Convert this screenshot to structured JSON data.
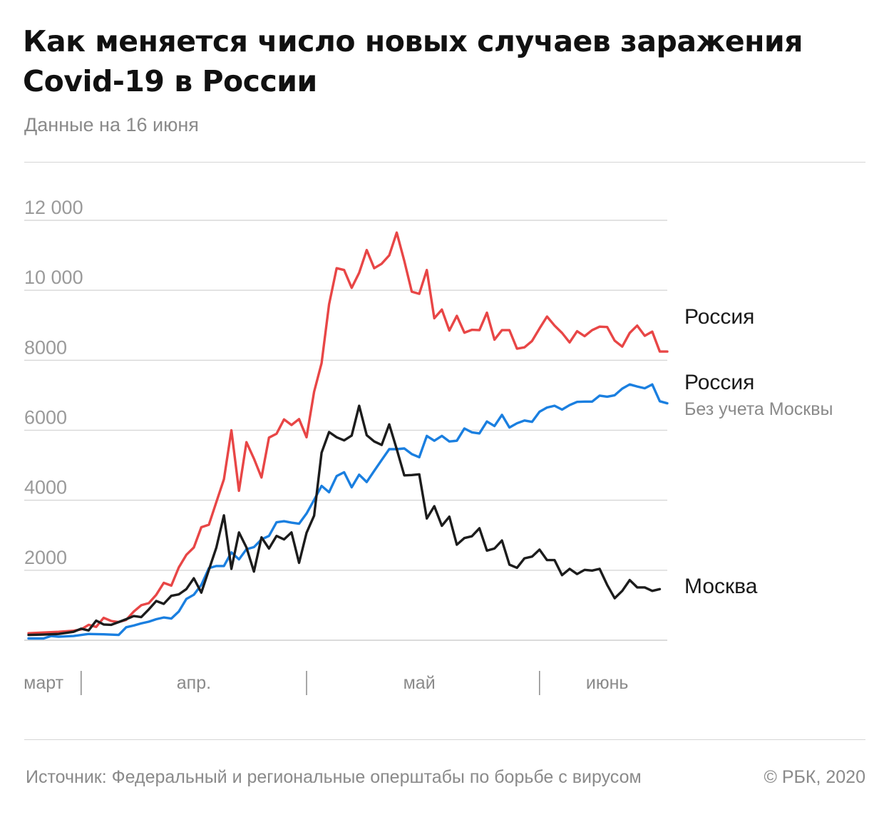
{
  "header": {
    "title": "Как меняется число новых случаев заражения Covid-19 в России",
    "subtitle": "Данные на 16 июня"
  },
  "footer": {
    "source": "Источник: Федеральный и региональные оперштабы по борьбе с вирусом",
    "copyright": "© РБК, 2020"
  },
  "colors": {
    "russia": "#e84646",
    "russia_excl_moscow": "#1a7fe0",
    "moscow": "#1c1c1c"
  },
  "chart_data": {
    "type": "line",
    "title": "Как меняется число новых случаев заражения Covid-19 в России",
    "subtitle": "Данные на 16 июня",
    "xlabel": "",
    "ylabel": "",
    "ylim": [
      0,
      12000
    ],
    "yticks": [
      {
        "value": 2000,
        "label": "2000"
      },
      {
        "value": 4000,
        "label": "4000"
      },
      {
        "value": 6000,
        "label": "6000"
      },
      {
        "value": 8000,
        "label": "8000"
      },
      {
        "value": 10000,
        "label": "10 000"
      },
      {
        "value": 12000,
        "label": "12 000"
      }
    ],
    "x_start": "2020-03-25",
    "x_end": "2020-06-16",
    "months": [
      {
        "label": "март",
        "date": "2020-03-27"
      },
      {
        "label": "апр.",
        "date": "2020-04-16"
      },
      {
        "label": "май",
        "date": "2020-05-16"
      },
      {
        "label": "июнь",
        "date": "2020-06-10"
      }
    ],
    "month_separators": [
      "2020-04-01",
      "2020-05-01",
      "2020-06-01"
    ],
    "grid": true,
    "legend": "right",
    "series": [
      {
        "key": "russia",
        "name": "Россия",
        "values": [
          [
            0,
            200
          ],
          [
            2,
            220
          ],
          [
            4,
            240
          ],
          [
            6,
            270
          ],
          [
            7,
            310
          ],
          [
            8,
            440
          ],
          [
            9,
            380
          ],
          [
            10,
            640
          ],
          [
            11,
            550
          ],
          [
            12,
            520
          ],
          [
            13,
            580
          ],
          [
            14,
            820
          ],
          [
            15,
            1000
          ],
          [
            16,
            1060
          ],
          [
            17,
            1300
          ],
          [
            18,
            1640
          ],
          [
            19,
            1560
          ],
          [
            20,
            2080
          ],
          [
            21,
            2440
          ],
          [
            22,
            2650
          ],
          [
            23,
            3230
          ],
          [
            24,
            3300
          ],
          [
            25,
            3950
          ],
          [
            26,
            4600
          ],
          [
            27,
            6000
          ],
          [
            28,
            4270
          ],
          [
            29,
            5660
          ],
          [
            30,
            5190
          ],
          [
            31,
            4650
          ],
          [
            32,
            5790
          ],
          [
            33,
            5900
          ],
          [
            34,
            6310
          ],
          [
            35,
            6150
          ],
          [
            36,
            6320
          ],
          [
            37,
            5800
          ],
          [
            38,
            7100
          ],
          [
            39,
            7920
          ],
          [
            40,
            9600
          ],
          [
            41,
            10630
          ],
          [
            42,
            10580
          ],
          [
            43,
            10070
          ],
          [
            44,
            10500
          ],
          [
            45,
            11150
          ],
          [
            46,
            10630
          ],
          [
            47,
            10760
          ],
          [
            48,
            11000
          ],
          [
            49,
            11650
          ],
          [
            50,
            10840
          ],
          [
            51,
            9960
          ],
          [
            52,
            9900
          ],
          [
            53,
            10580
          ],
          [
            54,
            9200
          ],
          [
            55,
            9450
          ],
          [
            56,
            8850
          ],
          [
            57,
            9270
          ],
          [
            58,
            8790
          ],
          [
            59,
            8870
          ],
          [
            60,
            8860
          ],
          [
            61,
            9360
          ],
          [
            62,
            8590
          ],
          [
            63,
            8860
          ],
          [
            64,
            8860
          ],
          [
            65,
            8330
          ],
          [
            66,
            8370
          ],
          [
            67,
            8550
          ],
          [
            68,
            8910
          ],
          [
            69,
            9250
          ],
          [
            70,
            8990
          ],
          [
            71,
            8780
          ],
          [
            72,
            8510
          ],
          [
            73,
            8830
          ],
          [
            74,
            8690
          ],
          [
            75,
            8860
          ],
          [
            76,
            8960
          ],
          [
            77,
            8950
          ],
          [
            78,
            8560
          ],
          [
            79,
            8390
          ],
          [
            80,
            8780
          ],
          [
            81,
            8990
          ],
          [
            82,
            8700
          ],
          [
            83,
            8820
          ],
          [
            84,
            8250
          ],
          [
            85,
            8250
          ]
        ]
      },
      {
        "key": "russia_excl_moscow",
        "name": "Россия",
        "subtitle": "Без учета Москвы",
        "values": [
          [
            0,
            50
          ],
          [
            2,
            50
          ],
          [
            3,
            120
          ],
          [
            4,
            100
          ],
          [
            6,
            120
          ],
          [
            8,
            180
          ],
          [
            10,
            170
          ],
          [
            12,
            150
          ],
          [
            13,
            370
          ],
          [
            14,
            420
          ],
          [
            15,
            480
          ],
          [
            16,
            530
          ],
          [
            17,
            600
          ],
          [
            18,
            650
          ],
          [
            19,
            620
          ],
          [
            20,
            820
          ],
          [
            21,
            1180
          ],
          [
            22,
            1300
          ],
          [
            23,
            1580
          ],
          [
            24,
            2060
          ],
          [
            25,
            2120
          ],
          [
            26,
            2120
          ],
          [
            27,
            2510
          ],
          [
            28,
            2310
          ],
          [
            29,
            2600
          ],
          [
            30,
            2660
          ],
          [
            31,
            2880
          ],
          [
            32,
            2980
          ],
          [
            33,
            3370
          ],
          [
            34,
            3400
          ],
          [
            35,
            3360
          ],
          [
            36,
            3330
          ],
          [
            37,
            3620
          ],
          [
            38,
            4010
          ],
          [
            39,
            4410
          ],
          [
            40,
            4230
          ],
          [
            41,
            4690
          ],
          [
            42,
            4800
          ],
          [
            43,
            4370
          ],
          [
            44,
            4730
          ],
          [
            45,
            4520
          ],
          [
            46,
            4840
          ],
          [
            47,
            5150
          ],
          [
            48,
            5460
          ],
          [
            49,
            5460
          ],
          [
            50,
            5480
          ],
          [
            51,
            5320
          ],
          [
            52,
            5230
          ],
          [
            53,
            5840
          ],
          [
            54,
            5700
          ],
          [
            55,
            5840
          ],
          [
            56,
            5680
          ],
          [
            57,
            5700
          ],
          [
            58,
            6050
          ],
          [
            59,
            5940
          ],
          [
            60,
            5910
          ],
          [
            61,
            6250
          ],
          [
            62,
            6120
          ],
          [
            63,
            6440
          ],
          [
            64,
            6080
          ],
          [
            65,
            6200
          ],
          [
            66,
            6280
          ],
          [
            67,
            6240
          ],
          [
            68,
            6530
          ],
          [
            69,
            6650
          ],
          [
            70,
            6700
          ],
          [
            71,
            6590
          ],
          [
            72,
            6720
          ],
          [
            73,
            6810
          ],
          [
            74,
            6820
          ],
          [
            75,
            6820
          ],
          [
            76,
            6990
          ],
          [
            77,
            6960
          ],
          [
            78,
            7000
          ],
          [
            79,
            7190
          ],
          [
            80,
            7310
          ],
          [
            81,
            7250
          ],
          [
            82,
            7200
          ],
          [
            83,
            7310
          ],
          [
            84,
            6830
          ],
          [
            85,
            6770
          ]
        ]
      },
      {
        "key": "moscow",
        "name": "Москва",
        "values": [
          [
            0,
            150
          ],
          [
            2,
            160
          ],
          [
            4,
            180
          ],
          [
            5,
            210
          ],
          [
            6,
            240
          ],
          [
            7,
            330
          ],
          [
            8,
            280
          ],
          [
            9,
            560
          ],
          [
            10,
            450
          ],
          [
            11,
            440
          ],
          [
            12,
            520
          ],
          [
            13,
            600
          ],
          [
            14,
            690
          ],
          [
            15,
            660
          ],
          [
            16,
            880
          ],
          [
            17,
            1120
          ],
          [
            18,
            1040
          ],
          [
            19,
            1270
          ],
          [
            20,
            1310
          ],
          [
            21,
            1460
          ],
          [
            22,
            1770
          ],
          [
            23,
            1360
          ],
          [
            24,
            2010
          ],
          [
            25,
            2650
          ],
          [
            26,
            3570
          ],
          [
            27,
            2040
          ],
          [
            28,
            3080
          ],
          [
            29,
            2650
          ],
          [
            30,
            1960
          ],
          [
            31,
            2940
          ],
          [
            32,
            2620
          ],
          [
            33,
            2980
          ],
          [
            34,
            2880
          ],
          [
            35,
            3080
          ],
          [
            36,
            2210
          ],
          [
            37,
            3070
          ],
          [
            38,
            3560
          ],
          [
            39,
            5360
          ],
          [
            40,
            5950
          ],
          [
            41,
            5800
          ],
          [
            42,
            5710
          ],
          [
            43,
            5850
          ],
          [
            44,
            6700
          ],
          [
            45,
            5860
          ],
          [
            46,
            5680
          ],
          [
            47,
            5580
          ],
          [
            48,
            6170
          ],
          [
            49,
            5460
          ],
          [
            50,
            4710
          ],
          [
            51,
            4720
          ],
          [
            52,
            4740
          ],
          [
            53,
            3480
          ],
          [
            54,
            3830
          ],
          [
            55,
            3270
          ],
          [
            56,
            3530
          ],
          [
            57,
            2730
          ],
          [
            58,
            2920
          ],
          [
            59,
            2970
          ],
          [
            60,
            3200
          ],
          [
            61,
            2560
          ],
          [
            62,
            2620
          ],
          [
            63,
            2850
          ],
          [
            64,
            2160
          ],
          [
            65,
            2070
          ],
          [
            66,
            2340
          ],
          [
            67,
            2390
          ],
          [
            68,
            2590
          ],
          [
            69,
            2290
          ],
          [
            70,
            2290
          ],
          [
            71,
            1860
          ],
          [
            72,
            2040
          ],
          [
            73,
            1890
          ],
          [
            74,
            2010
          ],
          [
            75,
            1990
          ],
          [
            76,
            2040
          ],
          [
            77,
            1580
          ],
          [
            78,
            1200
          ],
          [
            79,
            1410
          ],
          [
            80,
            1720
          ],
          [
            81,
            1510
          ],
          [
            82,
            1510
          ],
          [
            83,
            1410
          ],
          [
            84,
            1460
          ]
        ]
      }
    ]
  }
}
